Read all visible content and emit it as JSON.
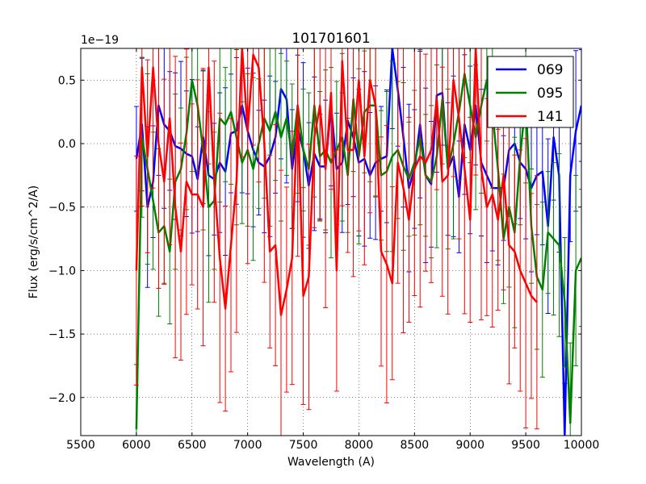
{
  "chart_data": {
    "type": "line",
    "title": "101701601",
    "xlabel": "Wavelength (A)",
    "ylabel": "Flux (erg/s/cm^2/A)",
    "offset_text": "1e−19",
    "xlim": [
      5500,
      10000
    ],
    "ylim": [
      -2.3,
      0.75
    ],
    "x_ticks": [
      5500,
      6000,
      6500,
      7000,
      7500,
      8000,
      8500,
      9000,
      9500,
      10000
    ],
    "y_ticks": [
      0.5,
      0.0,
      -0.5,
      -1.0,
      -1.5,
      -2.0
    ],
    "x_tick_labels": [
      "5500",
      "6000",
      "6500",
      "7000",
      "7500",
      "8000",
      "8500",
      "9000",
      "9500",
      "10000"
    ],
    "y_tick_labels": [
      "0.5",
      "0.0",
      "−0.5",
      "−1.0",
      "−1.5",
      "−2.0"
    ],
    "grid": true,
    "legend_position": "top-right",
    "series": [
      {
        "name": "069",
        "color": "#0000ff",
        "x": [
          6000,
          6050,
          6100,
          6150,
          6200,
          6250,
          6300,
          6350,
          6400,
          6450,
          6500,
          6550,
          6600,
          6650,
          6700,
          6750,
          6800,
          6850,
          6900,
          6950,
          7000,
          7050,
          7100,
          7150,
          7200,
          7250,
          7300,
          7350,
          7400,
          7450,
          7500,
          7550,
          7600,
          7650,
          7700,
          7750,
          7800,
          7850,
          7900,
          7950,
          8000,
          8050,
          8100,
          8150,
          8200,
          8250,
          8300,
          8350,
          8400,
          8450,
          8500,
          8550,
          8600,
          8650,
          8700,
          8750,
          8800,
          8850,
          8900,
          8950,
          9000,
          9050,
          9100,
          9150,
          9200,
          9250,
          9300,
          9350,
          9400,
          9450,
          9500,
          9550,
          9600,
          9650,
          9700,
          9750,
          9800,
          9850,
          9900,
          9950,
          10000
        ],
        "values": [
          -0.12,
          0.15,
          -0.5,
          -0.3,
          0.3,
          0.15,
          0.1,
          -0.02,
          -0.04,
          -0.08,
          -0.1,
          -0.28,
          0.05,
          -0.25,
          -0.28,
          -0.15,
          -0.22,
          0.08,
          0.1,
          0.3,
          0.1,
          -0.05,
          -0.15,
          -0.18,
          -0.1,
          0.05,
          0.43,
          0.35,
          -0.2,
          0.12,
          -0.05,
          -0.33,
          -0.08,
          -0.18,
          -0.18,
          0.3,
          -0.2,
          -0.15,
          0.18,
          0.05,
          -0.15,
          -0.12,
          -0.25,
          -0.15,
          -0.12,
          -0.1,
          0.75,
          0.42,
          0.05,
          -0.35,
          -0.2,
          0.15,
          -0.25,
          -0.32,
          0.38,
          0.4,
          -0.2,
          -0.1,
          -0.42,
          0.15,
          -0.05,
          0.3,
          -0.15,
          -0.25,
          -0.35,
          -0.35,
          -0.35,
          -0.05,
          0.0,
          -0.15,
          -0.2,
          -0.35,
          -0.25,
          -0.22,
          -0.65,
          0.05,
          -0.25,
          -2.3,
          -0.25,
          0.1,
          0.3
        ]
      },
      {
        "name": "095",
        "color": "#008000",
        "x": [
          6000,
          6050,
          6100,
          6150,
          6200,
          6250,
          6300,
          6350,
          6400,
          6450,
          6500,
          6550,
          6600,
          6650,
          6700,
          6750,
          6800,
          6850,
          6900,
          6950,
          7000,
          7050,
          7100,
          7150,
          7200,
          7250,
          7300,
          7350,
          7400,
          7450,
          7500,
          7550,
          7600,
          7650,
          7700,
          7750,
          7800,
          7850,
          7900,
          7950,
          8000,
          8050,
          8100,
          8150,
          8200,
          8250,
          8300,
          8350,
          8400,
          8450,
          8500,
          8550,
          8600,
          8650,
          8700,
          8750,
          8800,
          8850,
          8900,
          8950,
          9000,
          9050,
          9100,
          9150,
          9200,
          9250,
          9300,
          9350,
          9400,
          9450,
          9500,
          9550,
          9600,
          9650,
          9700,
          9750,
          9800,
          9850,
          9900,
          9950,
          10000
        ],
        "values": [
          -2.25,
          0.05,
          -0.2,
          -0.45,
          -0.7,
          -0.65,
          -0.85,
          -0.3,
          -0.2,
          0.08,
          0.5,
          0.3,
          -0.05,
          -0.5,
          -0.45,
          0.2,
          0.15,
          0.25,
          0.05,
          -0.15,
          -0.05,
          -0.2,
          0.0,
          0.2,
          0.1,
          0.25,
          0.05,
          0.2,
          -0.1,
          0.3,
          -0.05,
          -0.2,
          0.3,
          -0.1,
          -0.05,
          -0.15,
          -0.05,
          0.05,
          -0.25,
          0.35,
          -0.1,
          0.25,
          0.3,
          0.3,
          -0.25,
          -0.22,
          -0.1,
          -0.05,
          -0.18,
          -0.28,
          -0.15,
          0.05,
          -0.25,
          -0.3,
          -0.1,
          0.35,
          -0.2,
          0.0,
          0.25,
          0.55,
          0.3,
          0.05,
          0.3,
          0.5,
          0.25,
          -0.2,
          -0.75,
          -0.5,
          -0.7,
          -0.1,
          0.35,
          -0.65,
          -1.05,
          -1.15,
          -0.7,
          -0.75,
          -0.8,
          -1.25,
          -2.2,
          -1.0,
          -0.9
        ]
      },
      {
        "name": "141",
        "color": "#ff0000",
        "x": [
          6000,
          6050,
          6100,
          6150,
          6200,
          6250,
          6300,
          6350,
          6400,
          6450,
          6500,
          6550,
          6600,
          6650,
          6700,
          6750,
          6800,
          6850,
          6900,
          6950,
          7000,
          7050,
          7100,
          7150,
          7200,
          7250,
          7300,
          7350,
          7400,
          7450,
          7500,
          7550,
          7600,
          7650,
          7700,
          7750,
          7800,
          7850,
          7900,
          7950,
          8000,
          8050,
          8100,
          8150,
          8200,
          8250,
          8300,
          8350,
          8400,
          8450,
          8500,
          8550,
          8600,
          8650,
          8700,
          8750,
          8800,
          8850,
          8900,
          8950,
          9000,
          9050,
          9100,
          9150,
          9200,
          9250,
          9300,
          9350,
          9400,
          9450,
          9500,
          9550,
          9600
        ],
        "values": [
          -1.0,
          0.6,
          -0.1,
          0.6,
          0.0,
          -0.3,
          0.2,
          -0.5,
          -0.85,
          -0.3,
          -0.4,
          -0.4,
          -0.5,
          0.6,
          -0.3,
          -0.9,
          -1.3,
          -0.8,
          -0.3,
          0.75,
          0.1,
          0.7,
          0.6,
          0.0,
          -0.85,
          -0.8,
          -1.35,
          -1.15,
          -0.9,
          0.3,
          -1.2,
          -1.05,
          0.05,
          0.3,
          -0.2,
          0.4,
          -1.0,
          0.65,
          -0.05,
          -0.05,
          0.5,
          -0.1,
          0.5,
          0.3,
          -0.85,
          -0.95,
          -1.1,
          -0.15,
          -0.35,
          -0.6,
          -0.2,
          -0.1,
          -0.15,
          -0.05,
          0.35,
          -0.3,
          -0.25,
          0.5,
          0.2,
          -0.2,
          -0.6,
          0.75,
          -0.2,
          -0.5,
          -0.4,
          -0.6,
          -0.25,
          -0.8,
          -0.85,
          -1.0,
          -1.1,
          -1.2,
          -1.25
        ]
      }
    ]
  }
}
